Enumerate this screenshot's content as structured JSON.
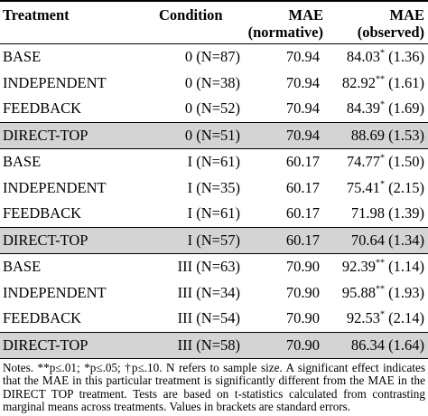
{
  "table": {
    "headers": {
      "treatment": "Treatment",
      "condition": "Condition",
      "mae_normative_line1": "MAE",
      "mae_normative_line2": "(normative)",
      "mae_observed_line1": "MAE",
      "mae_observed_line2": "(observed)"
    },
    "rows": [
      {
        "treatment": "BASE",
        "condition": "0 (N=87)",
        "mae_normative": "70.94",
        "observed_value": "84.03",
        "observed_sig": "*",
        "observed_se": "(1.36)",
        "shaded": false
      },
      {
        "treatment": "INDEPENDENT",
        "condition": "0 (N=38)",
        "mae_normative": "70.94",
        "observed_value": "82.92",
        "observed_sig": "**",
        "observed_se": "(1.61)",
        "shaded": false
      },
      {
        "treatment": "FEEDBACK",
        "condition": "0 (N=52)",
        "mae_normative": "70.94",
        "observed_value": "84.39",
        "observed_sig": "*",
        "observed_se": "(1.69)",
        "shaded": false
      },
      {
        "treatment": "DIRECT-TOP",
        "condition": "0 (N=51)",
        "mae_normative": "70.94",
        "observed_value": "88.69",
        "observed_sig": "",
        "observed_se": "(1.53)",
        "shaded": true
      },
      {
        "treatment": "BASE",
        "condition": "I (N=61)",
        "mae_normative": "60.17",
        "observed_value": "74.77",
        "observed_sig": "*",
        "observed_se": "(1.50)",
        "shaded": false
      },
      {
        "treatment": "INDEPENDENT",
        "condition": "I (N=35)",
        "mae_normative": "60.17",
        "observed_value": "75.41",
        "observed_sig": "*",
        "observed_se": "(2.15)",
        "shaded": false
      },
      {
        "treatment": "FEEDBACK",
        "condition": "I (N=61)",
        "mae_normative": "60.17",
        "observed_value": "71.98",
        "observed_sig": "",
        "observed_se": "(1.39)",
        "shaded": false
      },
      {
        "treatment": "DIRECT-TOP",
        "condition": "I (N=57)",
        "mae_normative": "60.17",
        "observed_value": "70.64",
        "observed_sig": "",
        "observed_se": "(1.34)",
        "shaded": true
      },
      {
        "treatment": "BASE",
        "condition": "III (N=63)",
        "mae_normative": "70.90",
        "observed_value": "92.39",
        "observed_sig": "**",
        "observed_se": "(1.14)",
        "shaded": false
      },
      {
        "treatment": "INDEPENDENT",
        "condition": "III (N=34)",
        "mae_normative": "70.90",
        "observed_value": "95.88",
        "observed_sig": "**",
        "observed_se": "(1.93)",
        "shaded": false
      },
      {
        "treatment": "FEEDBACK",
        "condition": "III (N=54)",
        "mae_normative": "70.90",
        "observed_value": "92.53",
        "observed_sig": "*",
        "observed_se": "(2.14)",
        "shaded": false
      },
      {
        "treatment": "DIRECT-TOP",
        "condition": "III (N=58)",
        "mae_normative": "70.90",
        "observed_value": "86.34",
        "observed_sig": "",
        "observed_se": "(1.64)",
        "shaded": true
      }
    ],
    "notes": "Notes. **p≤.01; *p≤.05; †p≤.10. N refers to sample size. A significant effect indicates that the MAE in this particular treatment is significantly different from the MAE in the DIRECT TOP treatment. Tests are based on t-statistics calculated from contrasting marginal means across treatments. Values in brackets are standard errors."
  }
}
